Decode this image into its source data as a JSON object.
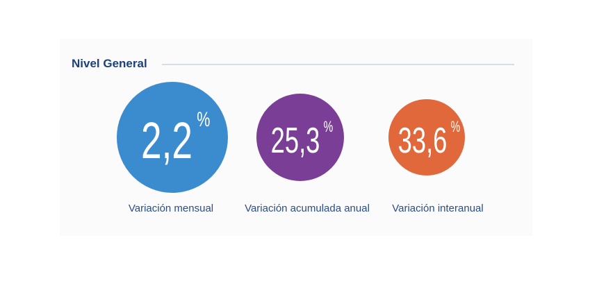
{
  "header": {
    "title": "Nivel General"
  },
  "indicators": [
    {
      "value": "2,2",
      "unit": "%",
      "label": "Variación mensual"
    },
    {
      "value": "25,3",
      "unit": "%",
      "label": "Variación acumulada anual"
    },
    {
      "value": "33,6",
      "unit": "%",
      "label": "Variación interanual"
    }
  ]
}
